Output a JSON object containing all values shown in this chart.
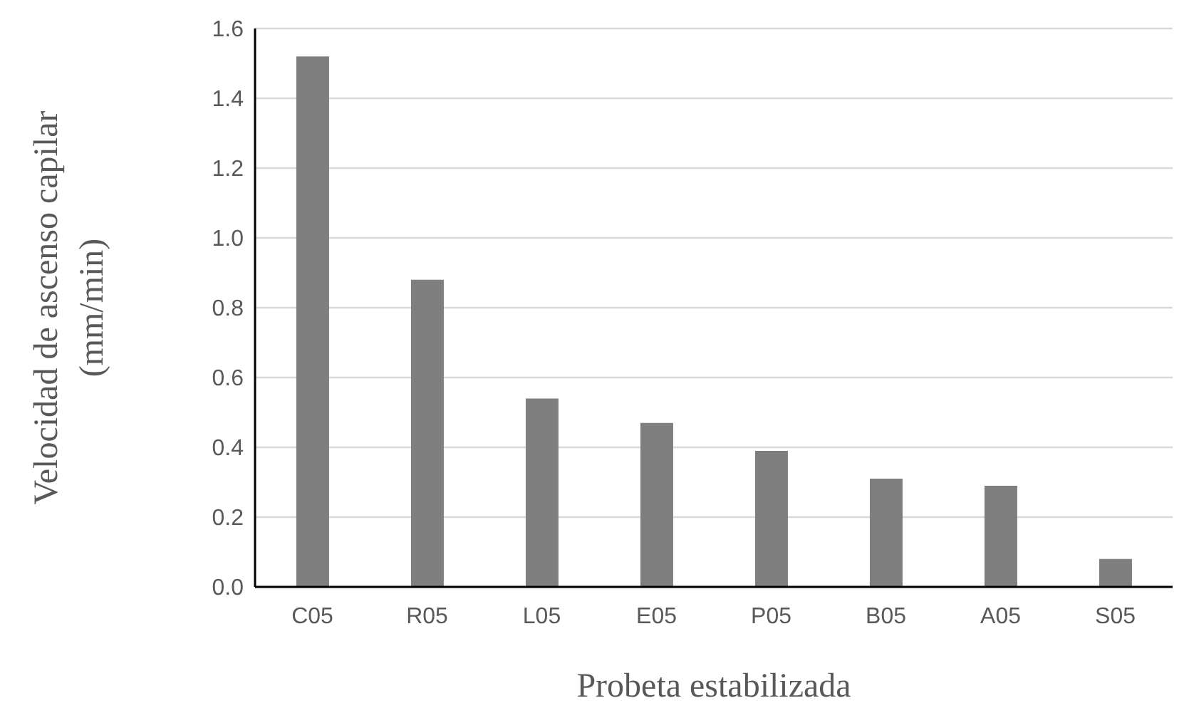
{
  "chart_data": {
    "type": "bar",
    "xlabel": "Probeta estabilizada",
    "ylabel": "Velocidad de ascenso capilar (mm/min)",
    "categories": [
      "C05",
      "R05",
      "L05",
      "E05",
      "P05",
      "B05",
      "A05",
      "S05"
    ],
    "values": [
      1.52,
      0.88,
      0.54,
      0.47,
      0.39,
      0.31,
      0.29,
      0.08
    ],
    "color": "#7f7f7f",
    "ylim": [
      0,
      1.6
    ],
    "yticks": [
      {
        "value": 0,
        "label": "0.0"
      },
      0.2,
      0.4,
      0.6,
      0.8,
      {
        "value": 1,
        "label": "1.0"
      },
      1.2,
      1.4,
      1.6
    ],
    "grid": "y"
  }
}
